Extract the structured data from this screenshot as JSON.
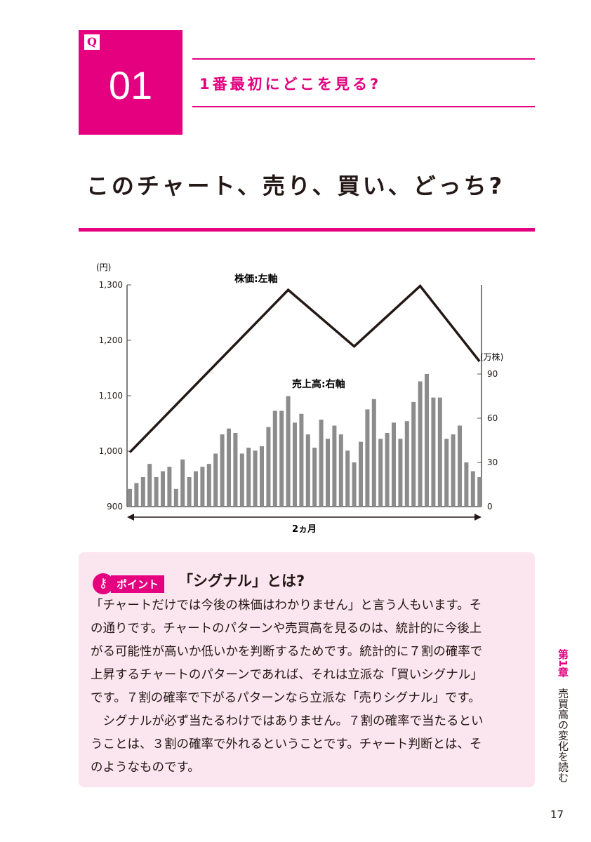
{
  "question": {
    "badge": "Q",
    "number": "01",
    "title": "1番最初にどこを見る?"
  },
  "main_title": "このチャート、売り、買い、どっち?",
  "chart_data": {
    "type": "bar+line",
    "xlabel": "2ヵ月",
    "left_axis": {
      "unit": "(円)",
      "ticks": [
        "1,300",
        "1,200",
        "1,100",
        "1,000",
        "900"
      ],
      "range": [
        900,
        1300
      ]
    },
    "right_axis": {
      "unit": "(万株)",
      "ticks": [
        "90",
        "60",
        "30",
        "0"
      ],
      "range": [
        0,
        100
      ]
    },
    "series": [
      {
        "name": "売上高:右軸",
        "type": "bar",
        "color": "#8c8c8c",
        "values": [
          12,
          16,
          20,
          29,
          20,
          24,
          27,
          12,
          32,
          20,
          24,
          27,
          29,
          36,
          49,
          53,
          50,
          36,
          40,
          38,
          41,
          54,
          65,
          65,
          75,
          57,
          63,
          49,
          40,
          59,
          46,
          55,
          49,
          38,
          30,
          44,
          66,
          73,
          46,
          50,
          57,
          46,
          58,
          71,
          85,
          90,
          74,
          74,
          46,
          49,
          55,
          30,
          24,
          20
        ]
      },
      {
        "name": "株価:左軸",
        "type": "line",
        "color": "#231815",
        "points": [
          [
            0,
            998
          ],
          [
            24,
            1291
          ],
          [
            34,
            1189
          ],
          [
            44,
            1298
          ],
          [
            53,
            1162
          ]
        ]
      }
    ]
  },
  "point": {
    "label": "ポイント",
    "icon": "key-icon",
    "heading": "「シグナル」とは?",
    "lines": [
      "「チャートだけでは今後の株価はわかりません」と言う人もいます。そ",
      "の通りです。チャートのパターンや売買高を見るのは、統計的に今後上",
      "がる可能性が高いか低いかを判断するためです。統計的に７割の確率で",
      "上昇するチャートのパターンであれば、それは立派な「買いシグナル」",
      "です。７割の確率で下がるパターンなら立派な「売りシグナル」です。",
      "　シグナルが必ず当たるわけではありません。７割の確率で当たるとい",
      "うことは、３割の確率で外れるということです。チャート判断とは、そ",
      "のようなものです。"
    ]
  },
  "side": {
    "chapter": "第1章",
    "title": "売買高の変化を読む"
  },
  "page_number": "17",
  "colors": {
    "accent": "#e4007f",
    "pink_bg": "#fbe6ef"
  }
}
